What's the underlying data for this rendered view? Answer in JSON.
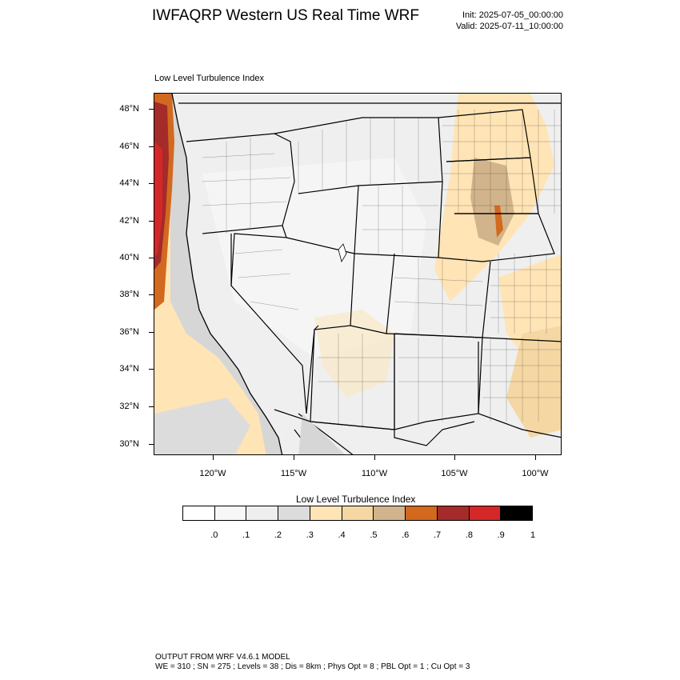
{
  "header": {
    "title": "IWFAQRP Western US Real Time WRF",
    "init": "Init: 2025-07-05_00:00:00",
    "valid": "Valid: 2025-07-11_10:00:00"
  },
  "map": {
    "subtitle": "Low Level Turbulence Index",
    "lat_labels": [
      "48°N",
      "46°N",
      "44°N",
      "42°N",
      "40°N",
      "38°N",
      "36°N",
      "34°N",
      "32°N",
      "30°N"
    ],
    "lon_labels": [
      "120°W",
      "115°W",
      "110°W",
      "105°W",
      "100°W"
    ],
    "colors": {
      "land_low": "#f2f2f2",
      "land_mid": "#e0e0e0",
      "ocean": "#d4d4d4",
      "light_tan": "#ffe4b5",
      "tan": "#f5d7a3",
      "brown": "#d2b48c",
      "orange": "#d2691e",
      "dark_red": "#a52a2a",
      "red": "#d62728"
    }
  },
  "legend": {
    "title": "Low Level Turbulence Index",
    "labels": [
      ".0",
      ".1",
      ".2",
      ".3",
      ".4",
      ".5",
      ".6",
      ".7",
      ".8",
      ".9",
      "1"
    ],
    "colors": [
      "#ffffff",
      "#f7f7f7",
      "#eeeeee",
      "#dcdcdc",
      "#ffe4b5",
      "#f5d7a3",
      "#d2b48c",
      "#d2691e",
      "#a52a2a",
      "#d62728",
      "#000000"
    ]
  },
  "footer": {
    "line1": "OUTPUT FROM WRF V4.6.1 MODEL",
    "line2": "WE = 310 ; SN = 275 ; Levels = 38 ; Dis = 8km ; Phys Opt = 8 ; PBL Opt = 1 ; Cu Opt = 3"
  }
}
